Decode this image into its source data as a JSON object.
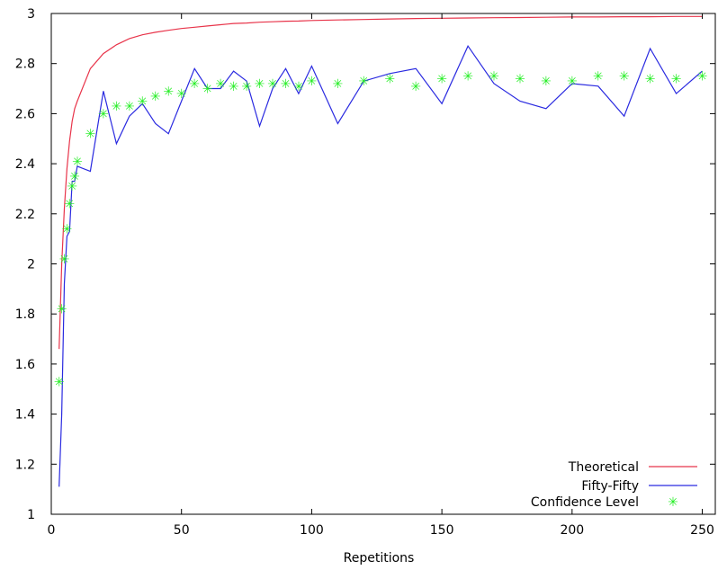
{
  "chart_data": {
    "type": "line",
    "title": "",
    "xlabel": "Repetitions",
    "ylabel": "",
    "xlim": [
      0,
      255
    ],
    "ylim": [
      1,
      3
    ],
    "x_ticks": [
      "0",
      "50",
      "100",
      "150",
      "200",
      "250"
    ],
    "y_ticks": [
      "1",
      "1.2",
      "1.4",
      "1.6",
      "1.8",
      "2",
      "2.2",
      "2.4",
      "2.6",
      "2.8",
      "3"
    ],
    "grid": false,
    "legend_position": "bottom-right",
    "series": [
      {
        "name": "Theoretical",
        "style": "line",
        "color": "#e8344a",
        "x": [
          3,
          4,
          5,
          6,
          7,
          8,
          9,
          10,
          15,
          20,
          25,
          30,
          35,
          40,
          45,
          50,
          55,
          60,
          65,
          70,
          75,
          80,
          85,
          90,
          95,
          100,
          110,
          120,
          130,
          140,
          150,
          160,
          170,
          180,
          190,
          200,
          210,
          220,
          230,
          240,
          250
        ],
        "y": [
          1.66,
          2.0,
          2.22,
          2.38,
          2.49,
          2.57,
          2.62,
          2.65,
          2.78,
          2.84,
          2.875,
          2.9,
          2.915,
          2.925,
          2.933,
          2.94,
          2.945,
          2.95,
          2.955,
          2.96,
          2.962,
          2.965,
          2.967,
          2.969,
          2.97,
          2.972,
          2.974,
          2.976,
          2.978,
          2.98,
          2.981,
          2.982,
          2.983,
          2.984,
          2.985,
          2.986,
          2.986,
          2.987,
          2.987,
          2.988,
          2.988
        ]
      },
      {
        "name": "Fifty-Fifty",
        "style": "line",
        "color": "#2a2ae0",
        "x": [
          3,
          4,
          5,
          6,
          7,
          8,
          9,
          10,
          15,
          20,
          25,
          30,
          35,
          40,
          45,
          50,
          55,
          60,
          65,
          70,
          75,
          80,
          85,
          90,
          95,
          100,
          110,
          120,
          130,
          140,
          150,
          160,
          170,
          180,
          190,
          200,
          210,
          220,
          230,
          240,
          250
        ],
        "y": [
          1.11,
          1.4,
          1.92,
          2.11,
          2.13,
          2.33,
          2.33,
          2.39,
          2.37,
          2.69,
          2.48,
          2.59,
          2.64,
          2.56,
          2.52,
          2.65,
          2.78,
          2.7,
          2.7,
          2.77,
          2.73,
          2.55,
          2.7,
          2.78,
          2.68,
          2.79,
          2.56,
          2.73,
          2.76,
          2.78,
          2.64,
          2.87,
          2.72,
          2.65,
          2.62,
          2.72,
          2.71,
          2.59,
          2.86,
          2.68,
          2.77
        ]
      },
      {
        "name": "Confidence Level",
        "style": "points",
        "color": "#22ee22",
        "x": [
          3,
          4,
          5,
          6,
          7,
          8,
          9,
          10,
          15,
          20,
          25,
          30,
          35,
          40,
          45,
          50,
          55,
          60,
          65,
          70,
          75,
          80,
          85,
          90,
          95,
          100,
          110,
          120,
          130,
          140,
          150,
          160,
          170,
          180,
          190,
          200,
          210,
          220,
          230,
          240,
          250
        ],
        "y": [
          1.53,
          1.82,
          2.02,
          2.14,
          2.24,
          2.31,
          2.35,
          2.41,
          2.52,
          2.6,
          2.63,
          2.63,
          2.65,
          2.67,
          2.69,
          2.68,
          2.72,
          2.7,
          2.72,
          2.71,
          2.71,
          2.72,
          2.72,
          2.72,
          2.71,
          2.73,
          2.72,
          2.73,
          2.74,
          2.71,
          2.74,
          2.75,
          2.75,
          2.74,
          2.73,
          2.73,
          2.75,
          2.75,
          2.74,
          2.74,
          2.75
        ]
      }
    ]
  }
}
